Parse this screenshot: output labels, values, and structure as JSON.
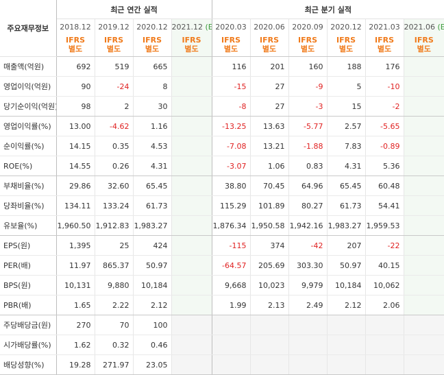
{
  "header": {
    "row_label": "주요재무정보",
    "annual_title": "최근 연간 실적",
    "quarter_title": "최근 분기 실적",
    "annual_dates": [
      "2018.12",
      "2019.12",
      "2020.12",
      "2021.12"
    ],
    "quarter_dates": [
      "2020.03",
      "2020.06",
      "2020.09",
      "2020.12",
      "2021.03",
      "2021.06"
    ],
    "est_mark": "(E)",
    "ifrs_line1": "IFRS",
    "ifrs_line2": "별도"
  },
  "rows": [
    {
      "label": "매출액(억원)",
      "annual": [
        "692",
        "519",
        "665",
        ""
      ],
      "quarter": [
        "116",
        "201",
        "160",
        "188",
        "176",
        ""
      ]
    },
    {
      "label": "영업이익(억원)",
      "annual": [
        "90",
        "-24",
        "8",
        ""
      ],
      "quarter": [
        "-15",
        "27",
        "-9",
        "5",
        "-10",
        ""
      ]
    },
    {
      "label": "당기순이익(억원)",
      "annual": [
        "98",
        "2",
        "30",
        ""
      ],
      "quarter": [
        "-8",
        "27",
        "-3",
        "15",
        "-2",
        ""
      ]
    },
    {
      "label": "영업이익률(%)",
      "annual": [
        "13.00",
        "-4.62",
        "1.16",
        ""
      ],
      "quarter": [
        "-13.25",
        "13.63",
        "-5.77",
        "2.57",
        "-5.65",
        ""
      ]
    },
    {
      "label": "순이익률(%)",
      "annual": [
        "14.15",
        "0.35",
        "4.53",
        ""
      ],
      "quarter": [
        "-7.08",
        "13.21",
        "-1.88",
        "7.83",
        "-0.89",
        ""
      ]
    },
    {
      "label": "ROE(%)",
      "annual": [
        "14.55",
        "0.26",
        "4.31",
        ""
      ],
      "quarter": [
        "-3.07",
        "1.06",
        "0.83",
        "4.31",
        "5.36",
        ""
      ]
    },
    {
      "label": "부채비율(%)",
      "annual": [
        "29.86",
        "32.60",
        "65.45",
        ""
      ],
      "quarter": [
        "38.80",
        "70.45",
        "64.96",
        "65.45",
        "60.48",
        ""
      ]
    },
    {
      "label": "당좌비율(%)",
      "annual": [
        "134.11",
        "133.24",
        "61.73",
        ""
      ],
      "quarter": [
        "115.29",
        "101.89",
        "80.27",
        "61.73",
        "54.41",
        ""
      ]
    },
    {
      "label": "유보율(%)",
      "annual": [
        "1,960.50",
        "1,912.83",
        "1,983.27",
        ""
      ],
      "quarter": [
        "1,876.34",
        "1,950.58",
        "1,942.16",
        "1,983.27",
        "1,959.53",
        ""
      ]
    },
    {
      "label": "EPS(원)",
      "annual": [
        "1,395",
        "25",
        "424",
        ""
      ],
      "quarter": [
        "-115",
        "374",
        "-42",
        "207",
        "-22",
        ""
      ]
    },
    {
      "label": "PER(배)",
      "annual": [
        "11.97",
        "865.37",
        "50.97",
        ""
      ],
      "quarter": [
        "-64.57",
        "205.69",
        "303.30",
        "50.97",
        "40.15",
        ""
      ]
    },
    {
      "label": "BPS(원)",
      "annual": [
        "10,131",
        "9,880",
        "10,184",
        ""
      ],
      "quarter": [
        "9,668",
        "10,023",
        "9,979",
        "10,184",
        "10,062",
        ""
      ]
    },
    {
      "label": "PBR(배)",
      "annual": [
        "1.65",
        "2.22",
        "2.12",
        ""
      ],
      "quarter": [
        "1.99",
        "2.13",
        "2.49",
        "2.12",
        "2.06",
        ""
      ]
    },
    {
      "label": "주당배당금(원)",
      "annual": [
        "270",
        "70",
        "100",
        ""
      ],
      "quarter": [
        "",
        "",
        "",
        "",
        "",
        ""
      ]
    },
    {
      "label": "시가배당률(%)",
      "annual": [
        "1.62",
        "0.32",
        "0.46",
        ""
      ],
      "quarter": [
        "",
        "",
        "",
        "",
        "",
        ""
      ]
    },
    {
      "label": "배당성향(%)",
      "annual": [
        "19.28",
        "271.97",
        "23.05",
        ""
      ],
      "quarter": [
        "",
        "",
        "",
        "",
        "",
        ""
      ]
    }
  ],
  "colors": {
    "negative": "#e02020",
    "ifrs": "#f07a1a",
    "estimate": "#3a9a3a"
  }
}
